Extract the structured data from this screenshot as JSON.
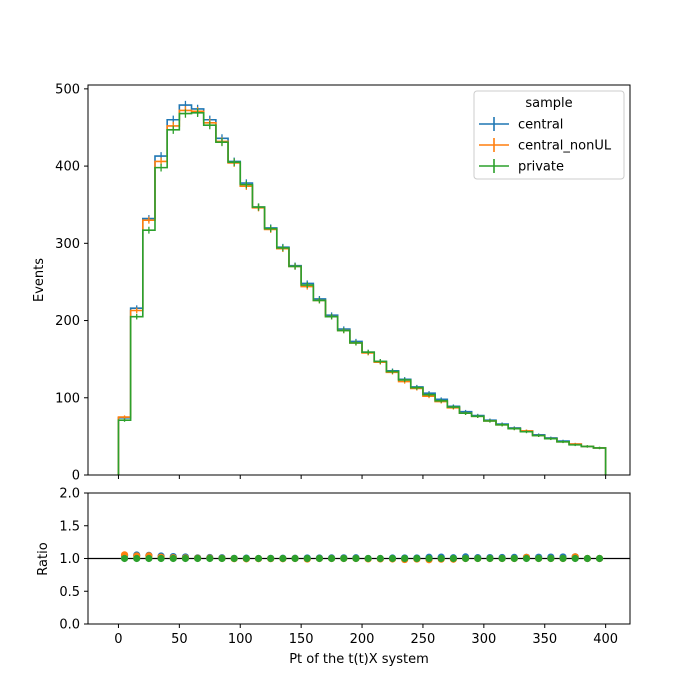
{
  "chart_data": {
    "type": "line",
    "step": true,
    "bin_edges": [
      0,
      10,
      20,
      30,
      40,
      50,
      60,
      70,
      80,
      90,
      100,
      110,
      120,
      130,
      140,
      150,
      160,
      170,
      180,
      190,
      200,
      210,
      220,
      230,
      240,
      250,
      260,
      270,
      280,
      290,
      300,
      310,
      320,
      330,
      340,
      350,
      360,
      370,
      380,
      390,
      400
    ],
    "series": [
      {
        "name": "central",
        "color": "#1f77b4",
        "values": [
          74,
          216,
          332,
          413,
          460,
          479,
          474,
          460,
          436,
          406,
          378,
          347,
          320,
          295,
          271,
          248,
          228,
          207,
          189,
          173,
          159,
          147,
          135,
          124,
          114,
          106,
          98,
          89,
          82,
          77,
          71,
          66,
          61,
          57,
          52,
          48,
          44,
          40,
          37,
          35
        ]
      },
      {
        "name": "central_nonUL",
        "color": "#ff7f0e",
        "values": [
          75,
          213,
          330,
          406,
          452,
          472,
          471,
          456,
          432,
          404,
          374,
          346,
          318,
          293,
          270,
          244,
          226,
          205,
          187,
          171,
          158,
          146,
          133,
          121,
          112,
          102,
          95,
          87,
          80,
          76,
          70,
          65,
          60,
          57,
          51,
          47,
          43,
          40,
          37,
          35
        ]
      },
      {
        "name": "private",
        "color": "#2ca02c",
        "values": [
          71,
          205,
          317,
          398,
          447,
          468,
          469,
          453,
          431,
          405,
          376,
          347,
          319,
          294,
          270,
          246,
          226,
          205,
          187,
          171,
          159,
          147,
          134,
          123,
          113,
          104,
          96,
          88,
          80,
          76,
          70,
          65,
          60,
          56,
          51,
          47,
          43,
          39,
          37,
          35
        ]
      }
    ],
    "ratio": {
      "ylabel": "Ratio",
      "ylim": [
        0.0,
        2.0
      ],
      "yticks": [
        "0.0",
        "0.5",
        "1.0",
        "1.5",
        "2.0"
      ],
      "reference_line": 1.0
    },
    "xlabel": "Pt of the t(t)X system",
    "ylabel": "Events",
    "xlim": [
      -25,
      420
    ],
    "ylim": [
      0,
      505
    ],
    "xticks": [
      "0",
      "50",
      "100",
      "150",
      "200",
      "250",
      "300",
      "350",
      "400"
    ],
    "yticks": [
      "0",
      "100",
      "200",
      "300",
      "400",
      "500"
    ],
    "legend": {
      "title": "sample",
      "position": "top-right"
    }
  }
}
